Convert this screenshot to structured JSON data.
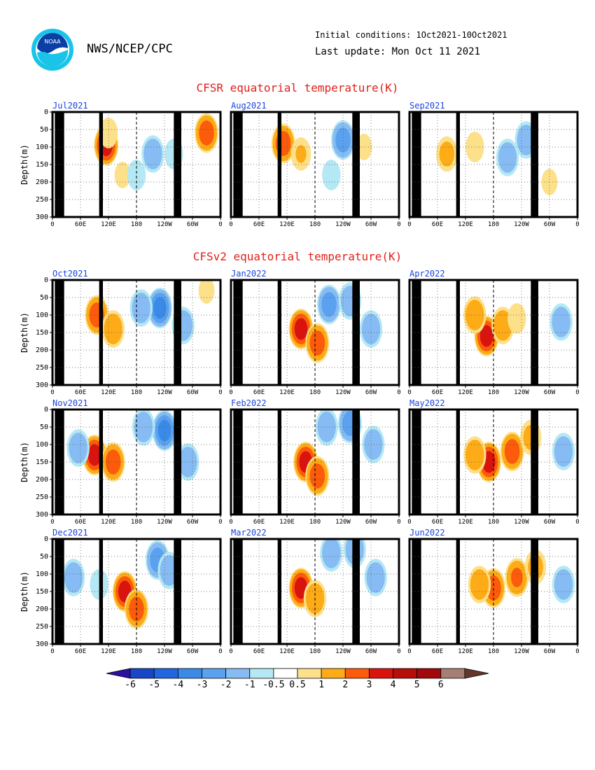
{
  "header": {
    "org": "NWS/NCEP/CPC",
    "initial_conditions": "Initial conditions: 1Oct2021-10Oct2021",
    "last_update": "Last update: Mon Oct 11 2021",
    "logo_text": "NOAA"
  },
  "sections": {
    "observed_title": "CFSR equatorial temperature(K)",
    "forecast_title": "CFSv2 equatorial temperature(K)"
  },
  "colors": {
    "title": "#e0201a",
    "panel_label": "#1a44dd",
    "land_mask": "#000000"
  },
  "chart_data": [
    {
      "panel": "Jul2021",
      "type": "heatmap",
      "kind": "observed",
      "ylabel": "Depth(m)",
      "x_ticks": [
        "0",
        "60E",
        "120E",
        "180",
        "120W",
        "60W",
        "0"
      ],
      "y_ticks": [
        "0",
        "50",
        "100",
        "150",
        "200",
        "250",
        "300"
      ],
      "ylim": [
        300,
        0
      ],
      "blobs": [
        {
          "lon": 115,
          "depth": 95,
          "v": 4
        },
        {
          "lon": 120,
          "depth": 60,
          "v": 1
        },
        {
          "lon": 150,
          "depth": 180,
          "v": 0.8
        },
        {
          "lon": 215,
          "depth": 120,
          "v": -2
        },
        {
          "lon": 180,
          "depth": 180,
          "v": -1
        },
        {
          "lon": 330,
          "depth": 60,
          "v": 3
        },
        {
          "lon": 260,
          "depth": 120,
          "v": -1
        }
      ]
    },
    {
      "panel": "Aug2021",
      "type": "heatmap",
      "kind": "observed",
      "ylabel": "",
      "x_ticks": [
        "0",
        "60E",
        "120E",
        "180",
        "120W",
        "60W",
        "0"
      ],
      "y_ticks": [],
      "ylim": [
        300,
        0
      ],
      "blobs": [
        {
          "lon": 112,
          "depth": 90,
          "v": 3
        },
        {
          "lon": 150,
          "depth": 120,
          "v": 1.2
        },
        {
          "lon": 240,
          "depth": 80,
          "v": -3
        },
        {
          "lon": 215,
          "depth": 180,
          "v": -1
        },
        {
          "lon": 285,
          "depth": 100,
          "v": 0.8
        }
      ]
    },
    {
      "panel": "Sep2021",
      "type": "heatmap",
      "kind": "observed",
      "ylabel": "",
      "x_ticks": [
        "0",
        "60E",
        "120E",
        "180",
        "120W",
        "60W",
        "0"
      ],
      "y_ticks": [],
      "ylim": [
        300,
        0
      ],
      "blobs": [
        {
          "lon": 80,
          "depth": 120,
          "v": 1.5
        },
        {
          "lon": 140,
          "depth": 100,
          "v": 1
        },
        {
          "lon": 210,
          "depth": 130,
          "v": -2
        },
        {
          "lon": 250,
          "depth": 80,
          "v": -2
        },
        {
          "lon": 300,
          "depth": 200,
          "v": 0.8
        }
      ]
    },
    {
      "panel": "Oct2021",
      "type": "heatmap",
      "kind": "forecast",
      "ylabel": "Depth(m)",
      "x_ticks": [
        "0",
        "60E",
        "120E",
        "180",
        "120W",
        "60W",
        "0"
      ],
      "y_ticks": [
        "0",
        "50",
        "100",
        "150",
        "200",
        "250",
        "300"
      ],
      "ylim": [
        300,
        0
      ],
      "blobs": [
        {
          "lon": 95,
          "depth": 100,
          "v": 3
        },
        {
          "lon": 130,
          "depth": 140,
          "v": 2
        },
        {
          "lon": 230,
          "depth": 80,
          "v": -4
        },
        {
          "lon": 190,
          "depth": 80,
          "v": -2
        },
        {
          "lon": 280,
          "depth": 130,
          "v": -2
        },
        {
          "lon": 330,
          "depth": 30,
          "v": 0.8
        }
      ]
    },
    {
      "panel": "Jan2022",
      "type": "heatmap",
      "kind": "forecast",
      "ylabel": "",
      "x_ticks": [
        "0",
        "60E",
        "120E",
        "180",
        "120W",
        "60W",
        "0"
      ],
      "y_ticks": [],
      "ylim": [
        300,
        0
      ],
      "blobs": [
        {
          "lon": 150,
          "depth": 140,
          "v": 4
        },
        {
          "lon": 185,
          "depth": 180,
          "v": 3
        },
        {
          "lon": 210,
          "depth": 70,
          "v": -3
        },
        {
          "lon": 255,
          "depth": 60,
          "v": -2
        },
        {
          "lon": 300,
          "depth": 140,
          "v": -2
        }
      ]
    },
    {
      "panel": "Apr2022",
      "type": "heatmap",
      "kind": "forecast",
      "ylabel": "",
      "x_ticks": [
        "0",
        "60E",
        "120E",
        "180",
        "120W",
        "60W",
        "0"
      ],
      "y_ticks": [],
      "ylim": [
        300,
        0
      ],
      "blobs": [
        {
          "lon": 165,
          "depth": 160,
          "v": 4
        },
        {
          "lon": 200,
          "depth": 130,
          "v": 2
        },
        {
          "lon": 140,
          "depth": 100,
          "v": 2
        },
        {
          "lon": 230,
          "depth": 110,
          "v": 1
        },
        {
          "lon": 325,
          "depth": 120,
          "v": -2
        }
      ]
    },
    {
      "panel": "Nov2021",
      "type": "heatmap",
      "kind": "forecast",
      "ylabel": "Depth(m)",
      "x_ticks": [
        "0",
        "60E",
        "120E",
        "180",
        "120W",
        "60W",
        "0"
      ],
      "y_ticks": [
        "0",
        "50",
        "100",
        "150",
        "200",
        "250",
        "300"
      ],
      "ylim": [
        300,
        0
      ],
      "blobs": [
        {
          "lon": 90,
          "depth": 130,
          "v": 4
        },
        {
          "lon": 130,
          "depth": 150,
          "v": 3
        },
        {
          "lon": 240,
          "depth": 60,
          "v": -4
        },
        {
          "lon": 195,
          "depth": 50,
          "v": -2
        },
        {
          "lon": 290,
          "depth": 150,
          "v": -2
        },
        {
          "lon": 55,
          "depth": 110,
          "v": -2
        }
      ]
    },
    {
      "panel": "Feb2022",
      "type": "heatmap",
      "kind": "forecast",
      "ylabel": "",
      "x_ticks": [
        "0",
        "60E",
        "120E",
        "180",
        "120W",
        "60W",
        "0"
      ],
      "y_ticks": [],
      "ylim": [
        300,
        0
      ],
      "blobs": [
        {
          "lon": 160,
          "depth": 150,
          "v": 4
        },
        {
          "lon": 185,
          "depth": 190,
          "v": 3
        },
        {
          "lon": 205,
          "depth": 50,
          "v": -2
        },
        {
          "lon": 255,
          "depth": 40,
          "v": -3
        },
        {
          "lon": 305,
          "depth": 100,
          "v": -2
        }
      ]
    },
    {
      "panel": "May2022",
      "type": "heatmap",
      "kind": "forecast",
      "ylabel": "",
      "x_ticks": [
        "0",
        "60E",
        "120E",
        "180",
        "120W",
        "60W",
        "0"
      ],
      "y_ticks": [],
      "ylim": [
        300,
        0
      ],
      "blobs": [
        {
          "lon": 170,
          "depth": 150,
          "v": 4
        },
        {
          "lon": 220,
          "depth": 120,
          "v": 3
        },
        {
          "lon": 140,
          "depth": 130,
          "v": 2
        },
        {
          "lon": 260,
          "depth": 80,
          "v": 1.5
        },
        {
          "lon": 330,
          "depth": 120,
          "v": -2
        }
      ]
    },
    {
      "panel": "Dec2021",
      "type": "heatmap",
      "kind": "forecast",
      "ylabel": "Depth(m)",
      "x_ticks": [
        "0",
        "60E",
        "120E",
        "180",
        "120W",
        "60W",
        "0"
      ],
      "y_ticks": [
        "0",
        "50",
        "100",
        "150",
        "200",
        "250",
        "300"
      ],
      "ylim": [
        300,
        0
      ],
      "blobs": [
        {
          "lon": 155,
          "depth": 150,
          "v": 4
        },
        {
          "lon": 180,
          "depth": 200,
          "v": 3
        },
        {
          "lon": 225,
          "depth": 60,
          "v": -3
        },
        {
          "lon": 250,
          "depth": 90,
          "v": -2
        },
        {
          "lon": 45,
          "depth": 110,
          "v": -2
        },
        {
          "lon": 100,
          "depth": 130,
          "v": -1
        }
      ]
    },
    {
      "panel": "Mar2022",
      "type": "heatmap",
      "kind": "forecast",
      "ylabel": "",
      "x_ticks": [
        "0",
        "60E",
        "120E",
        "180",
        "120W",
        "60W",
        "0"
      ],
      "y_ticks": [],
      "ylim": [
        300,
        0
      ],
      "blobs": [
        {
          "lon": 150,
          "depth": 140,
          "v": 4
        },
        {
          "lon": 180,
          "depth": 170,
          "v": 2
        },
        {
          "lon": 215,
          "depth": 40,
          "v": -2
        },
        {
          "lon": 265,
          "depth": 30,
          "v": -2
        },
        {
          "lon": 310,
          "depth": 110,
          "v": -2
        }
      ]
    },
    {
      "panel": "Jun2022",
      "type": "heatmap",
      "kind": "forecast",
      "ylabel": "",
      "x_ticks": [
        "0",
        "60E",
        "120E",
        "180",
        "120W",
        "60W",
        "0"
      ],
      "y_ticks": [],
      "ylim": [
        300,
        0
      ],
      "blobs": [
        {
          "lon": 180,
          "depth": 140,
          "v": 3
        },
        {
          "lon": 230,
          "depth": 110,
          "v": 2.5
        },
        {
          "lon": 150,
          "depth": 130,
          "v": 2
        },
        {
          "lon": 270,
          "depth": 80,
          "v": 1.5
        },
        {
          "lon": 330,
          "depth": 130,
          "v": -2
        }
      ]
    }
  ],
  "colorbar": {
    "tick_labels": [
      "-6",
      "-5",
      "-4",
      "-3",
      "-2",
      "-1",
      "-0.5",
      "0.5",
      "1",
      "2",
      "3",
      "4",
      "5",
      "6"
    ],
    "bounds": [
      -6,
      -5,
      -4,
      -3,
      -2,
      -1,
      -0.5,
      0.5,
      1,
      2,
      3,
      4,
      5,
      6
    ],
    "colors": [
      "#2c0fa0",
      "#1747c8",
      "#1f66e0",
      "#3a8ae8",
      "#5aa2ef",
      "#86bcf3",
      "#b4e8f4",
      "#ffffff",
      "#fde08a",
      "#fdab16",
      "#fb5b0a",
      "#d9140f",
      "#b70d0b",
      "#a3080a",
      "#a57f76",
      "#63362b"
    ]
  }
}
